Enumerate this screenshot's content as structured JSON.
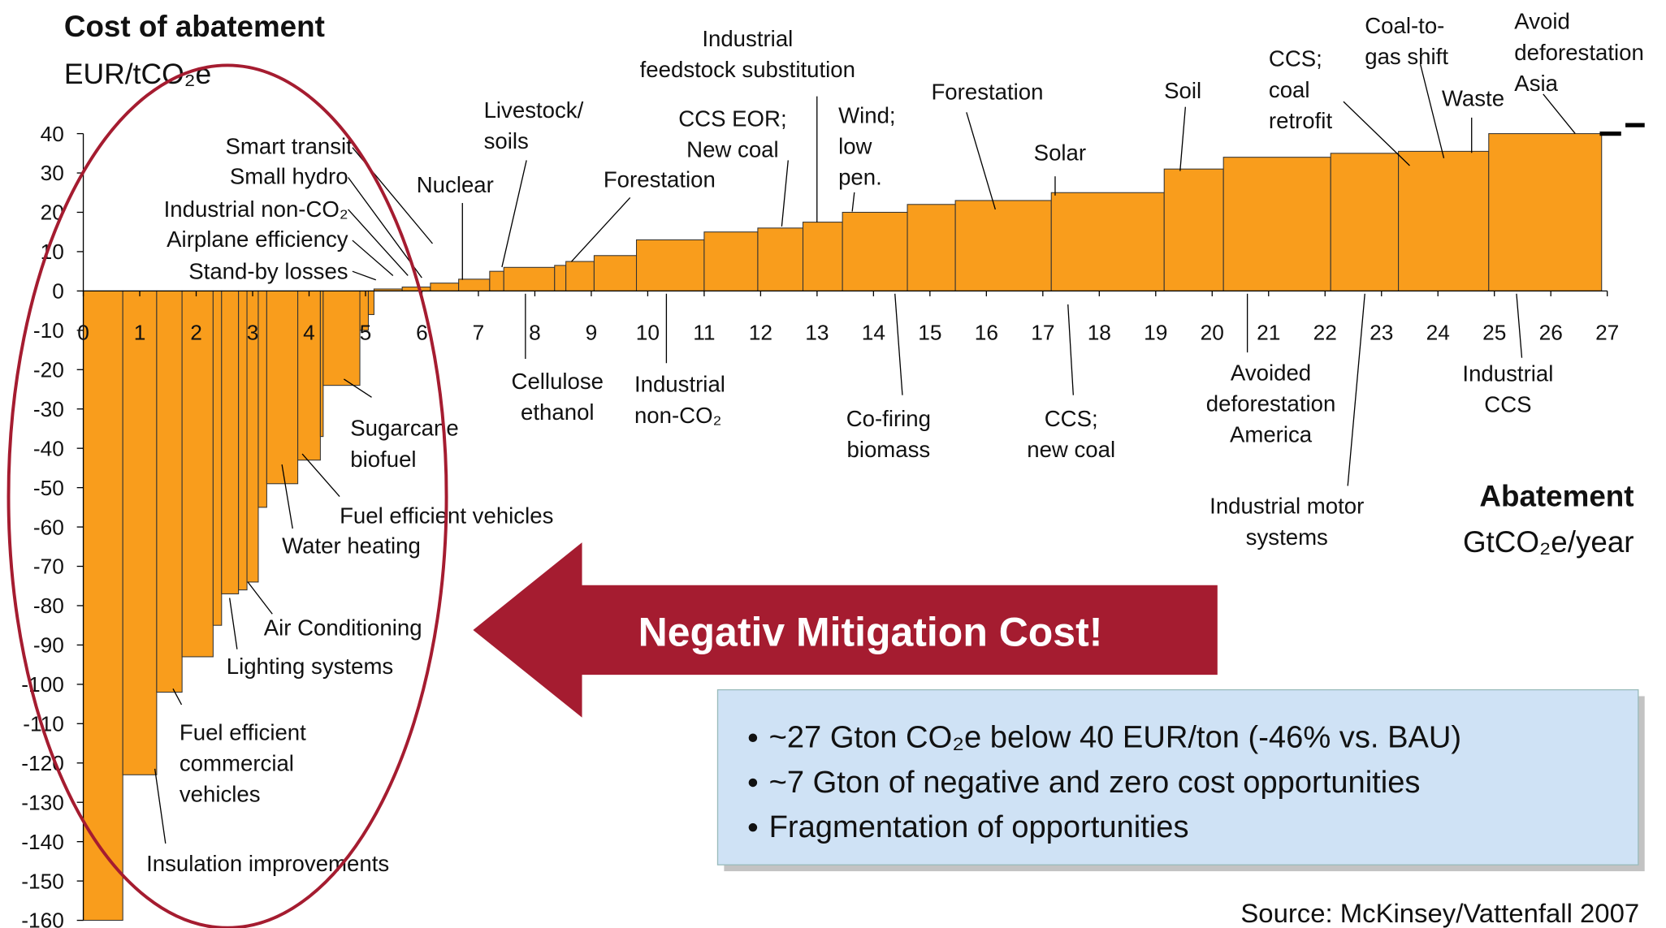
{
  "chart_data": {
    "type": "mac",
    "title": "Cost of abatement",
    "y_label": "EUR/tCO₂e",
    "x_label": "Abatement",
    "x_unit": "GtCO₂e/year",
    "color": "#f99d1c",
    "widths": [
      0.7,
      0.6,
      0.45,
      0.55,
      0.15,
      0.3,
      0.15,
      0.2,
      0.15,
      0.55,
      0.4,
      0.05,
      0.65,
      0.15,
      0.1,
      0.5,
      0.5,
      0.5,
      0.55,
      0.25,
      0.9,
      0.2,
      0.5,
      0.75,
      1.2,
      0.95,
      0.8,
      0.7,
      1.15,
      0.85,
      1.7,
      2.0,
      1.05,
      1.9,
      1.2,
      1.6,
      2.0
    ],
    "values": [
      -160,
      -123,
      -102,
      -93,
      -85,
      -77,
      -76,
      -74,
      -55,
      -49,
      -43,
      -37,
      -24,
      -10,
      -6,
      0.5,
      1,
      2,
      3,
      5,
      6,
      6.5,
      7.5,
      9,
      13,
      15,
      16,
      17.5,
      20,
      22,
      23,
      25,
      31,
      34,
      35,
      35.5,
      40
    ],
    "xlim": [
      0,
      27
    ],
    "xticks": [
      0,
      1,
      2,
      3,
      4,
      5,
      6,
      7,
      8,
      9,
      10,
      11,
      12,
      13,
      14,
      15,
      16,
      17,
      18,
      19,
      20,
      21,
      22,
      23,
      24,
      25,
      26,
      27
    ],
    "ylim": [
      -160,
      40
    ],
    "yticks": [
      -160,
      -150,
      -140,
      -130,
      -120,
      -110,
      -100,
      -90,
      -80,
      -70,
      -60,
      -50,
      -40,
      -30,
      -20,
      -10,
      0,
      10,
      20,
      30,
      40
    ],
    "annotations": [
      [
        "Smart transit"
      ],
      [
        "Small hydro"
      ],
      [
        "Industrial non-CO₂"
      ],
      [
        "Airplane efficiency"
      ],
      [
        "Stand-by losses"
      ],
      [
        "Nuclear"
      ],
      [
        "Livestock/",
        "soils"
      ],
      [
        "Industrial",
        "feedstock substitution"
      ],
      [
        "CCS EOR;",
        "New coal"
      ],
      [
        "Forestation"
      ],
      [
        "Wind;",
        "low",
        "pen."
      ],
      [
        "Forestation"
      ],
      [
        "Solar"
      ],
      [
        "Soil"
      ],
      [
        "CCS;",
        "coal",
        "retrofit"
      ],
      [
        "Coal-to-",
        "gas shift"
      ],
      [
        "Waste"
      ],
      [
        "Avoid",
        "deforestation",
        "Asia"
      ],
      [
        "Cellulose",
        "ethanol"
      ],
      [
        "Industrial",
        "non-CO₂"
      ],
      [
        "Co-firing",
        "biomass"
      ],
      [
        "CCS;",
        "new coal"
      ],
      [
        "Avoided",
        "deforestation",
        "America"
      ],
      [
        "Industrial motor",
        "systems"
      ],
      [
        "Industrial",
        "CCS"
      ],
      [
        "Sugarcane",
        "biofuel"
      ],
      [
        "Fuel efficient vehicles"
      ],
      [
        "Water heating"
      ],
      [
        "Air Conditioning"
      ],
      [
        "Lighting systems"
      ],
      [
        "Fuel efficient",
        "commercial",
        "vehicles"
      ],
      [
        "Insulation improvements"
      ]
    ],
    "callout": "Negativ Mitigation Cost!",
    "bullets": [
      "~27 Gton CO₂e below 40 EUR/ton (-46% vs. BAU)",
      "~7 Gton of negative and zero cost opportunities",
      "Fragmentation of opportunities"
    ],
    "source": "Source: McKinsey/Vattenfall 2007"
  }
}
